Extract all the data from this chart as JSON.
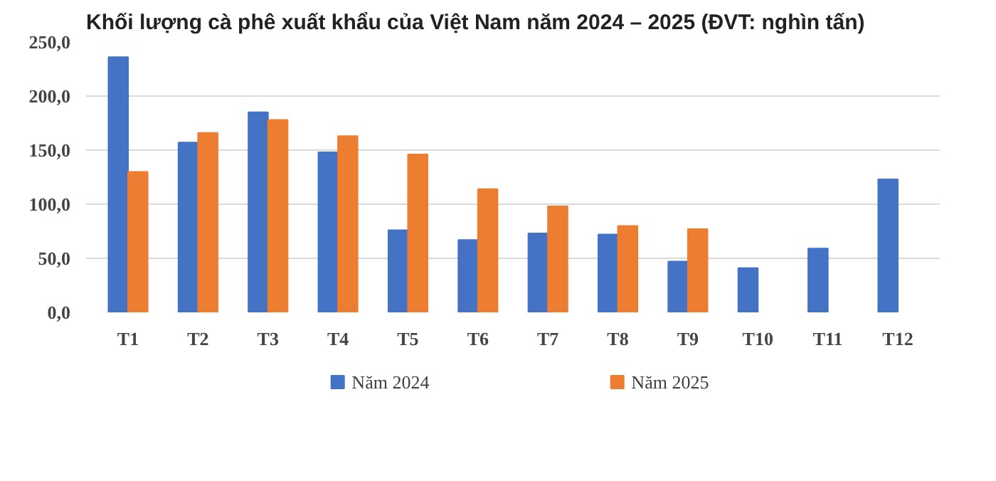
{
  "chart_data": {
    "type": "bar",
    "title": "Khối lượng cà phê xuất khẩu của Việt Nam năm 2024 – 2025 (ĐVT: nghìn tấn)",
    "categories": [
      "T1",
      "T2",
      "T3",
      "T4",
      "T5",
      "T6",
      "T7",
      "T8",
      "T9",
      "T10",
      "T11",
      "T12"
    ],
    "series": [
      {
        "name": "Năm 2024",
        "color": "#4472c4",
        "values": [
          236,
          157,
          185,
          148,
          76,
          67,
          73,
          72,
          47,
          41,
          59,
          123
        ]
      },
      {
        "name": "Năm 2025",
        "color": "#ed7d31",
        "values": [
          130,
          166,
          178,
          163,
          146,
          114,
          98,
          80,
          77,
          null,
          null,
          null
        ]
      }
    ],
    "ylim": [
      0,
      250
    ],
    "yticks": [
      {
        "value": 0,
        "label": "0,0"
      },
      {
        "value": 50,
        "label": "50,0"
      },
      {
        "value": 100,
        "label": "100,0"
      },
      {
        "value": 150,
        "label": "150,0"
      },
      {
        "value": 200,
        "label": "200,0"
      },
      {
        "value": 250,
        "label": "250,0"
      }
    ],
    "grid": "y",
    "legend": "bottom"
  }
}
